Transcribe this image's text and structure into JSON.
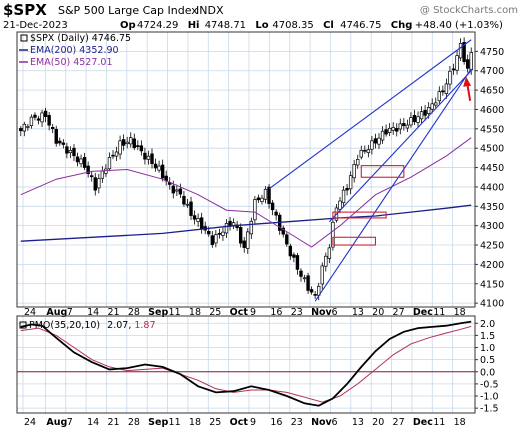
{
  "header": {
    "symbol": "$SPX",
    "name": "S&P 500 Large Cap Index",
    "exchange": "INDX",
    "watermark": "@ StockCharts.com",
    "date": "21-Dec-2023",
    "ohlc": [
      {
        "label": "Op",
        "value": "4724.29"
      },
      {
        "label": "Hi",
        "value": "4748.71"
      },
      {
        "label": "Lo",
        "value": "4708.35"
      },
      {
        "label": "Cl",
        "value": "4746.75"
      },
      {
        "label": "Chg",
        "value": "+48.40 (+1.03%)"
      }
    ]
  },
  "legend": [
    {
      "text": "$SPX (Daily) 4746.75",
      "color": "#000000",
      "style": "box"
    },
    {
      "text": "EMA(200) 4352.90",
      "color": "#1a1f8c",
      "style": "line"
    },
    {
      "text": "EMA(50) 4527.01",
      "color": "#8b2fa0",
      "style": "line"
    }
  ],
  "pmo_legend": {
    "prefix": "PMO(35,20,10)",
    "value1": "2.07",
    "value2": "1.87",
    "color1": "#000000",
    "color2": "#b03050"
  },
  "x_labels": [
    "24",
    "Aug",
    "7",
    "14",
    "21",
    "28",
    "Sep",
    "11",
    "18",
    "25",
    "Oct",
    "9",
    "16",
    "23",
    "Nov",
    "6",
    "13",
    "20",
    "27",
    "Dec",
    "11",
    "18"
  ],
  "colors": {
    "price": "#000000",
    "ema200": "#1a1f8c",
    "ema50": "#8b2fa0",
    "trendline": "#2233cc",
    "box": "#cc2233",
    "arrow": "#dd1111",
    "pmo": "#000000",
    "pmo_signal": "#b03050",
    "zero_line": "#8b1a3a",
    "grid": "#c8d8e8"
  },
  "chart_data": [
    {
      "type": "candlestick",
      "title": "$SPX (Daily)",
      "y_axis_side": "right",
      "ylim": [
        4090,
        4800
      ],
      "yticks": [
        4100,
        4150,
        4200,
        4250,
        4300,
        4350,
        4400,
        4450,
        4500,
        4550,
        4600,
        4650,
        4700,
        4750
      ],
      "price_path": [
        [
          0,
          4545
        ],
        [
          3,
          4575
        ],
        [
          7,
          4585
        ],
        [
          10,
          4520
        ],
        [
          15,
          4480
        ],
        [
          18,
          4455
        ],
        [
          21,
          4400
        ],
        [
          24,
          4455
        ],
        [
          28,
          4510
        ],
        [
          31,
          4520
        ],
        [
          35,
          4480
        ],
        [
          39,
          4445
        ],
        [
          42,
          4400
        ],
        [
          45,
          4380
        ],
        [
          48,
          4330
        ],
        [
          51,
          4300
        ],
        [
          54,
          4260
        ],
        [
          57,
          4290
        ],
        [
          60,
          4310
        ],
        [
          63,
          4240
        ],
        [
          66,
          4360
        ],
        [
          69,
          4385
        ],
        [
          72,
          4320
        ],
        [
          75,
          4250
        ],
        [
          78,
          4190
        ],
        [
          81,
          4140
        ],
        [
          83,
          4115
        ],
        [
          85,
          4190
        ],
        [
          87,
          4250
        ],
        [
          89,
          4350
        ],
        [
          92,
          4400
        ],
        [
          95,
          4480
        ],
        [
          99,
          4510
        ],
        [
          103,
          4545
        ],
        [
          107,
          4555
        ],
        [
          111,
          4575
        ],
        [
          115,
          4600
        ],
        [
          119,
          4650
        ],
        [
          122,
          4710
        ],
        [
          124,
          4765
        ],
        [
          126,
          4700
        ],
        [
          127,
          4746.75
        ]
      ],
      "series": [
        {
          "name": "EMA(200)",
          "values": [
            [
              0,
              4260
            ],
            [
              20,
              4270
            ],
            [
              40,
              4280
            ],
            [
              60,
              4300
            ],
            [
              75,
              4310
            ],
            [
              90,
              4320
            ],
            [
              100,
              4325
            ],
            [
              110,
              4335
            ],
            [
              120,
              4345
            ],
            [
              127,
              4352.9
            ]
          ]
        },
        {
          "name": "EMA(50)",
          "values": [
            [
              0,
              4380
            ],
            [
              10,
              4420
            ],
            [
              20,
              4440
            ],
            [
              30,
              4445
            ],
            [
              40,
              4420
            ],
            [
              50,
              4380
            ],
            [
              58,
              4340
            ],
            [
              66,
              4335
            ],
            [
              74,
              4290
            ],
            [
              82,
              4245
            ],
            [
              90,
              4300
            ],
            [
              100,
              4380
            ],
            [
              110,
              4425
            ],
            [
              120,
              4480
            ],
            [
              127,
              4527.01
            ]
          ]
        }
      ],
      "trendlines": [
        [
          [
            83,
            4105
          ],
          [
            127,
            4705
          ]
        ],
        [
          [
            70,
            4395
          ],
          [
            127,
            4780
          ]
        ],
        [
          [
            87,
            4310
          ],
          [
            127,
            4700
          ]
        ]
      ],
      "boxes": [
        {
          "x": [
            88,
            100
          ],
          "y": [
            4250,
            4270
          ]
        },
        {
          "x": [
            88,
            103
          ],
          "y": [
            4320,
            4335
          ]
        },
        {
          "x": [
            96,
            108
          ],
          "y": [
            4425,
            4455
          ]
        }
      ]
    },
    {
      "type": "line",
      "title": "PMO(35,20,10)",
      "y_axis_side": "right",
      "ylim": [
        -1.7,
        2.3
      ],
      "yticks": [
        -1.5,
        -1.0,
        -0.5,
        0.0,
        0.5,
        1.0,
        1.5,
        2.0
      ],
      "series": [
        {
          "name": "PMO",
          "values": [
            [
              0,
              1.85
            ],
            [
              3,
              1.95
            ],
            [
              6,
              1.9
            ],
            [
              10,
              1.4
            ],
            [
              15,
              0.8
            ],
            [
              20,
              0.4
            ],
            [
              25,
              0.1
            ],
            [
              30,
              0.15
            ],
            [
              35,
              0.3
            ],
            [
              40,
              0.2
            ],
            [
              45,
              -0.1
            ],
            [
              50,
              -0.6
            ],
            [
              55,
              -0.85
            ],
            [
              60,
              -0.8
            ],
            [
              65,
              -0.6
            ],
            [
              70,
              -0.75
            ],
            [
              75,
              -1.0
            ],
            [
              80,
              -1.3
            ],
            [
              84,
              -1.4
            ],
            [
              88,
              -1.1
            ],
            [
              92,
              -0.5
            ],
            [
              96,
              0.2
            ],
            [
              100,
              0.85
            ],
            [
              104,
              1.35
            ],
            [
              108,
              1.65
            ],
            [
              112,
              1.8
            ],
            [
              116,
              1.85
            ],
            [
              120,
              1.9
            ],
            [
              124,
              2.0
            ],
            [
              127,
              2.07
            ]
          ]
        },
        {
          "name": "Signal",
          "values": [
            [
              0,
              1.7
            ],
            [
              5,
              1.8
            ],
            [
              10,
              1.5
            ],
            [
              15,
              1.0
            ],
            [
              20,
              0.5
            ],
            [
              25,
              0.2
            ],
            [
              30,
              0.05
            ],
            [
              35,
              0.1
            ],
            [
              40,
              0.15
            ],
            [
              45,
              -0.1
            ],
            [
              50,
              -0.35
            ],
            [
              55,
              -0.7
            ],
            [
              60,
              -0.85
            ],
            [
              65,
              -0.75
            ],
            [
              70,
              -0.75
            ],
            [
              75,
              -0.85
            ],
            [
              80,
              -1.05
            ],
            [
              85,
              -1.25
            ],
            [
              90,
              -1.0
            ],
            [
              95,
              -0.5
            ],
            [
              100,
              0.1
            ],
            [
              105,
              0.7
            ],
            [
              110,
              1.15
            ],
            [
              115,
              1.4
            ],
            [
              120,
              1.6
            ],
            [
              124,
              1.75
            ],
            [
              127,
              1.87
            ]
          ]
        }
      ]
    }
  ]
}
